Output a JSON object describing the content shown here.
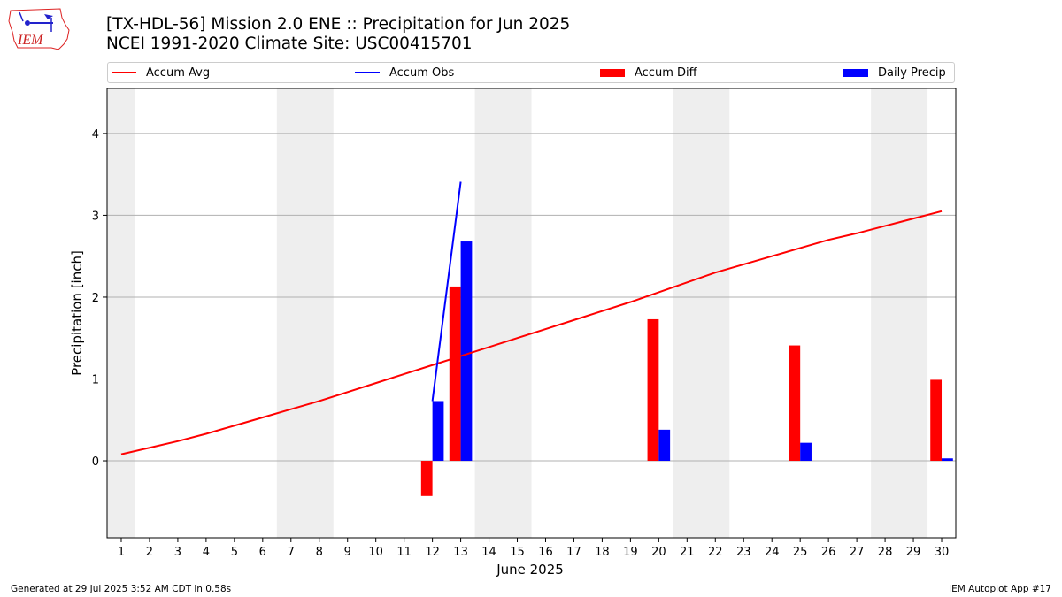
{
  "header": {
    "title_line1": "[TX-HDL-56] Mission 2.0 ENE :: Precipitation for Jun 2025",
    "title_line2": "NCEI 1991-2020 Climate Site: USC00415701"
  },
  "logo": {
    "text": "IEM"
  },
  "legend": {
    "items": [
      {
        "label": "Accum Avg",
        "kind": "line",
        "color": "#ff0000"
      },
      {
        "label": "Accum Obs",
        "kind": "line",
        "color": "#0000ff"
      },
      {
        "label": "Accum Diff",
        "kind": "bar",
        "color": "#ff0000"
      },
      {
        "label": "Daily Precip",
        "kind": "bar",
        "color": "#0000ff"
      }
    ]
  },
  "footer": {
    "left": "Generated at 29 Jul 2025 3:52 AM CDT in 0.58s",
    "right": "IEM Autoplot App #17"
  },
  "chart_data": {
    "type": "bar",
    "xlabel": "June 2025",
    "ylabel": "Precipitation [inch]",
    "xlim": [
      0.5,
      30.5
    ],
    "ylim": [
      -0.94,
      4.55
    ],
    "x_ticks": [
      1,
      2,
      3,
      4,
      5,
      6,
      7,
      8,
      9,
      10,
      11,
      12,
      13,
      14,
      15,
      16,
      17,
      18,
      19,
      20,
      21,
      22,
      23,
      24,
      25,
      26,
      27,
      28,
      29,
      30
    ],
    "y_ticks": [
      0,
      1,
      2,
      3,
      4
    ],
    "grid": "y",
    "legend_position": "top",
    "weekend_shading": [
      [
        1,
        1
      ],
      [
        7,
        8
      ],
      [
        14,
        15
      ],
      [
        21,
        22
      ],
      [
        28,
        29
      ]
    ],
    "weekend_color": "#eeeeee",
    "accum_avg": {
      "name": "Accum Avg",
      "color": "#ff0000",
      "x": [
        1,
        2,
        3,
        4,
        5,
        6,
        7,
        8,
        9,
        10,
        11,
        12,
        13,
        14,
        15,
        16,
        17,
        18,
        19,
        20,
        21,
        22,
        23,
        24,
        25,
        26,
        27,
        28,
        29,
        30
      ],
      "y": [
        0.08,
        0.16,
        0.24,
        0.33,
        0.43,
        0.53,
        0.63,
        0.73,
        0.84,
        0.95,
        1.06,
        1.17,
        1.28,
        1.39,
        1.5,
        1.61,
        1.72,
        1.83,
        1.94,
        2.06,
        2.18,
        2.3,
        2.4,
        2.5,
        2.6,
        2.7,
        2.78,
        2.87,
        2.96,
        3.05
      ]
    },
    "accum_obs": {
      "name": "Accum Obs",
      "color": "#0000ff",
      "x": [
        12,
        13
      ],
      "y": [
        0.73,
        3.41
      ]
    },
    "accum_diff": {
      "name": "Accum Diff",
      "color": "#ff0000",
      "x": [
        12,
        13,
        20,
        25,
        30
      ],
      "y": [
        -0.43,
        2.13,
        1.73,
        1.41,
        0.99
      ]
    },
    "daily_precip": {
      "name": "Daily Precip",
      "color": "#0000ff",
      "x": [
        12,
        13,
        20,
        25,
        30
      ],
      "y": [
        0.73,
        2.68,
        0.38,
        0.22,
        0.03
      ]
    }
  }
}
